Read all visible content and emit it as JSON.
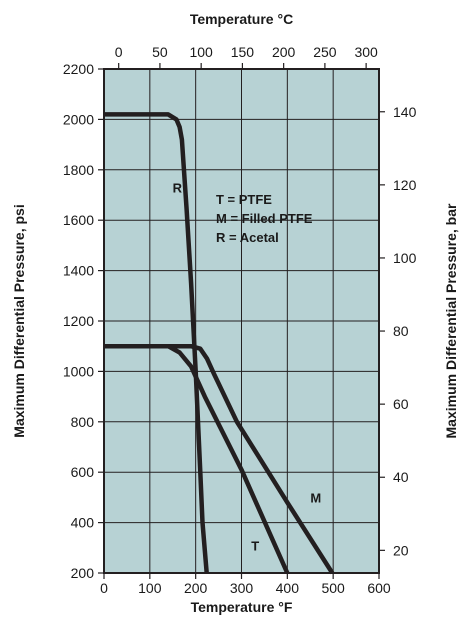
{
  "chart_data": {
    "type": "line",
    "title": "",
    "plot_background": "#b7d2d4",
    "line_color": "#231f20",
    "x_bottom": {
      "label": "Temperature °F",
      "range": [
        0,
        600
      ],
      "ticks": [
        0,
        100,
        200,
        300,
        400,
        500,
        600
      ]
    },
    "x_top": {
      "label": "Temperature °C",
      "range": [
        -17.8,
        315.6
      ],
      "ticks": [
        0,
        50,
        100,
        150,
        200,
        250,
        300
      ]
    },
    "y_left": {
      "label": "Maximum Differential Pressure, psi",
      "range": [
        200,
        2200
      ],
      "ticks": [
        200,
        400,
        600,
        800,
        1000,
        1200,
        1400,
        1600,
        1800,
        2000,
        2200
      ]
    },
    "y_right": {
      "label": "Maximum Differential Pressure, bar",
      "range": [
        13.8,
        151.7
      ],
      "ticks": [
        20,
        40,
        60,
        80,
        100,
        120,
        140
      ]
    },
    "grid": true,
    "legend": {
      "placement": "center",
      "entries": [
        "T = PTFE",
        "M = Filled PTFE",
        "R = Acetal"
      ]
    },
    "series": [
      {
        "name": "R",
        "label_at": [
          160,
          1710
        ],
        "points": [
          [
            0,
            2020
          ],
          [
            140,
            2020
          ],
          [
            158,
            2000
          ],
          [
            165,
            1970
          ],
          [
            170,
            1920
          ],
          [
            180,
            1650
          ],
          [
            190,
            1350
          ],
          [
            200,
            1000
          ],
          [
            210,
            600
          ],
          [
            215,
            400
          ],
          [
            224,
            200
          ]
        ]
      },
      {
        "name": "M",
        "label_at": [
          462,
          480
        ],
        "points": [
          [
            0,
            1100
          ],
          [
            190,
            1100
          ],
          [
            210,
            1090
          ],
          [
            225,
            1050
          ],
          [
            240,
            990
          ],
          [
            290,
            800
          ],
          [
            400,
            480
          ],
          [
            498,
            200
          ]
        ]
      },
      {
        "name": "T",
        "label_at": [
          330,
          290
        ],
        "points": [
          [
            0,
            1100
          ],
          [
            140,
            1100
          ],
          [
            165,
            1075
          ],
          [
            190,
            1020
          ],
          [
            220,
            900
          ],
          [
            300,
            610
          ],
          [
            400,
            200
          ]
        ]
      }
    ]
  }
}
